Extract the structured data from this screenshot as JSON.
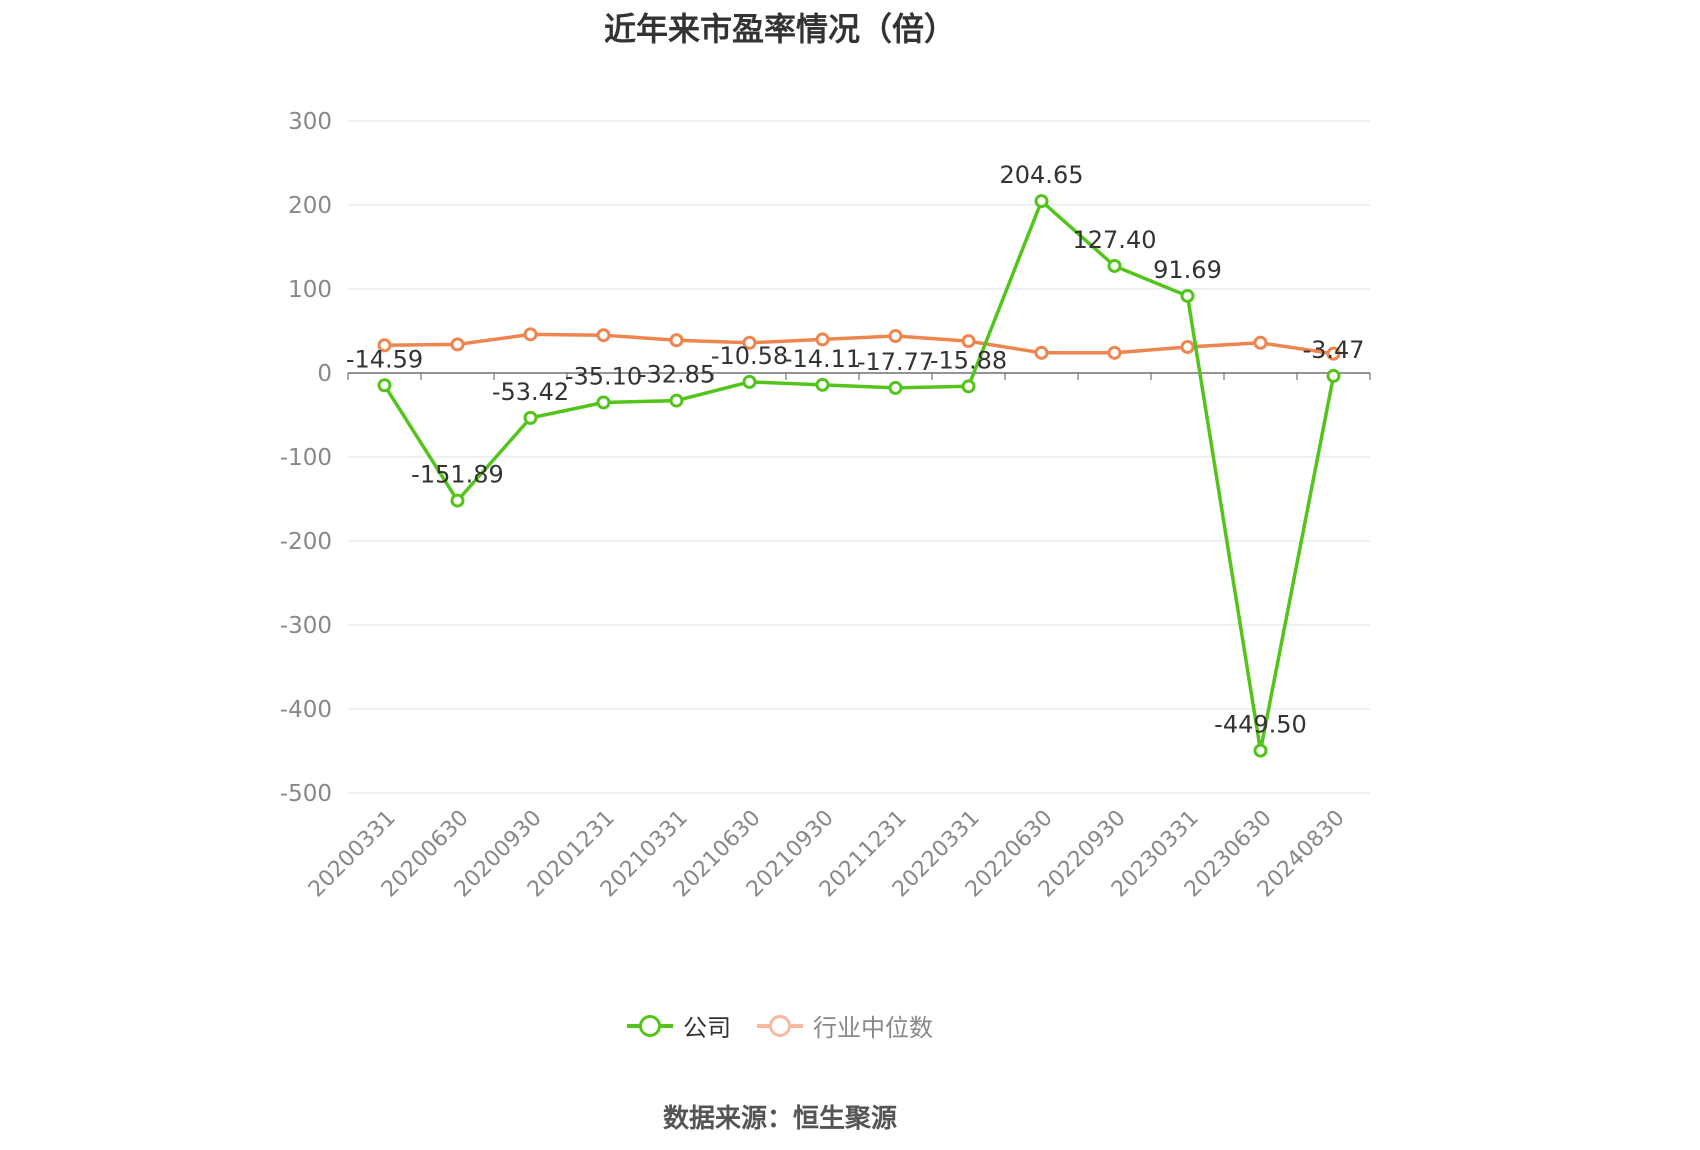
{
  "title": "近年来市盈率情况（倍）",
  "source": "数据来源：恒生聚源",
  "colors": {
    "company": "#52c41a",
    "industry": "#f0844e",
    "industry_legend": "#f7b9a0",
    "grid": "#e3e7f0",
    "axis_text": "#888888",
    "label_text": "#333333"
  },
  "chart_data": {
    "type": "line",
    "title": "近年来市盈率情况（倍）",
    "xlabel": "",
    "ylabel": "",
    "ylim": [
      -500,
      300
    ],
    "yticks": [
      300,
      200,
      100,
      0,
      -100,
      -200,
      -300,
      -400,
      -500
    ],
    "grid": true,
    "legend": "bottom",
    "categories": [
      "20200331",
      "20200630",
      "20200930",
      "20201231",
      "20210331",
      "20210630",
      "20210930",
      "20211231",
      "20220331",
      "20220630",
      "20220930",
      "20230331",
      "20230630",
      "20240830"
    ],
    "series": [
      {
        "name": "公司",
        "values": [
          -14.59,
          -151.89,
          -53.42,
          -35.1,
          -32.85,
          -10.58,
          -14.11,
          -17.77,
          -15.88,
          204.65,
          127.4,
          91.69,
          -449.5,
          -3.47
        ],
        "labels": [
          "-14.59",
          "-151.89",
          "-53.42",
          "-35.10",
          "-32.85",
          "-10.58",
          "-14.11",
          "-17.77",
          "-15.88",
          "204.65",
          "127.40",
          "91.69",
          "-449.50",
          "-3.47"
        ]
      },
      {
        "name": "行业中位数",
        "values": [
          33,
          34,
          46,
          45,
          39,
          36,
          40,
          44,
          38,
          24,
          24,
          31,
          36,
          23
        ]
      }
    ]
  }
}
